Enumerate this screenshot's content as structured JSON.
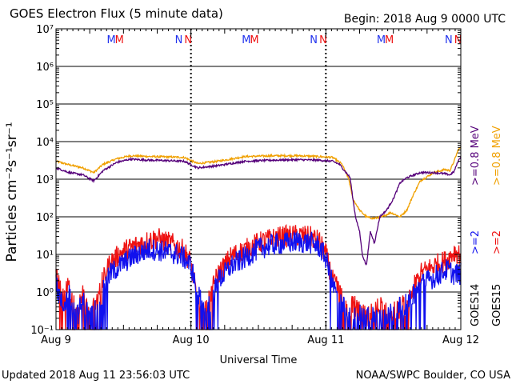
{
  "header": {
    "title": "GOES Electron Flux (5 minute data)",
    "begin": "Begin: 2018 Aug 9 0000 UTC"
  },
  "footer": {
    "updated": "Updated 2018 Aug 11 23:56:03 UTC",
    "credit": "NOAA/SWPC Boulder, CO USA"
  },
  "chart_data": {
    "type": "line",
    "title": "GOES Electron Flux (5 minute data)",
    "xlabel": "Universal Time",
    "ylabel": "Particles cm⁻²s⁻¹sr⁻¹",
    "yscale": "log",
    "ylim": [
      0.1,
      10000000
    ],
    "xlim_days": [
      0,
      3
    ],
    "grid": true,
    "reference_line": 1000,
    "x_ticks": [
      "Aug 9",
      "Aug 10",
      "Aug 11",
      "Aug 12"
    ],
    "y_ticks": [
      "10⁻¹",
      "10⁰",
      "10¹",
      "10²",
      "10³",
      "10⁴",
      "10⁵",
      "10⁶",
      "10⁷"
    ],
    "legend": {
      "g15_08": ">=0.8 MeV",
      "g14_08": ">=0.8 MeV",
      "g15_2": ">=2",
      "g14_2": ">=2",
      "goes15": "GOES15",
      "goes14": "GOES14"
    },
    "markers": [
      {
        "day": 0.41,
        "label": "M",
        "color": "#2233ee"
      },
      {
        "day": 0.47,
        "label": "M",
        "color": "#ee1111"
      },
      {
        "day": 0.91,
        "label": "N",
        "color": "#2233ee"
      },
      {
        "day": 0.98,
        "label": "N",
        "color": "#ee1111"
      },
      {
        "day": 1.41,
        "label": "M",
        "color": "#2233ee"
      },
      {
        "day": 1.47,
        "label": "M",
        "color": "#ee1111"
      },
      {
        "day": 1.91,
        "label": "N",
        "color": "#2233ee"
      },
      {
        "day": 1.98,
        "label": "N",
        "color": "#ee1111"
      },
      {
        "day": 2.41,
        "label": "M",
        "color": "#2233ee"
      },
      {
        "day": 2.47,
        "label": "M",
        "color": "#ee1111"
      },
      {
        "day": 2.91,
        "label": "N",
        "color": "#2233ee"
      },
      {
        "day": 2.98,
        "label": "N",
        "color": "#ee1111"
      }
    ],
    "series": [
      {
        "key": "g15_08",
        "color": "#f0a000",
        "x": [
          0.0,
          0.1,
          0.2,
          0.28,
          0.35,
          0.45,
          0.55,
          0.7,
          0.85,
          0.95,
          1.05,
          1.2,
          1.4,
          1.6,
          1.8,
          1.95,
          2.05,
          2.12,
          2.17,
          2.2,
          2.25,
          2.3,
          2.35,
          2.42,
          2.48,
          2.55,
          2.6,
          2.65,
          2.7,
          2.8,
          2.88,
          2.92,
          2.95,
          2.98,
          3.0
        ],
        "y": [
          3000,
          2400,
          2000,
          1500,
          2500,
          3500,
          4200,
          4000,
          3900,
          3800,
          2600,
          3000,
          4000,
          4200,
          4200,
          4000,
          3800,
          2500,
          1000,
          300,
          150,
          100,
          90,
          100,
          130,
          100,
          150,
          400,
          900,
          1500,
          1800,
          1700,
          3000,
          6000,
          7000
        ]
      },
      {
        "key": "g14_08",
        "color": "#55007a",
        "x": [
          0.0,
          0.1,
          0.2,
          0.28,
          0.35,
          0.45,
          0.55,
          0.7,
          0.85,
          0.95,
          1.05,
          1.2,
          1.4,
          1.6,
          1.8,
          1.95,
          2.05,
          2.1,
          2.15,
          2.18,
          2.2,
          2.22,
          2.25,
          2.27,
          2.3,
          2.33,
          2.36,
          2.4,
          2.45,
          2.5,
          2.55,
          2.6,
          2.7,
          2.8,
          2.88,
          2.92,
          2.95,
          2.98,
          3.0
        ],
        "y": [
          2000,
          1500,
          1300,
          900,
          1700,
          2800,
          3400,
          3200,
          3100,
          3000,
          2000,
          2300,
          3000,
          3200,
          3300,
          3200,
          3000,
          2500,
          1500,
          1100,
          300,
          100,
          40,
          10,
          5,
          40,
          20,
          100,
          150,
          300,
          800,
          1100,
          1500,
          1500,
          1400,
          1300,
          1600,
          3000,
          4000
        ]
      },
      {
        "key": "g15_2",
        "color": "#ee1111",
        "x": [
          0.0,
          0.05,
          0.1,
          0.15,
          0.2,
          0.25,
          0.3,
          0.35,
          0.4,
          0.5,
          0.6,
          0.7,
          0.75,
          0.8,
          0.85,
          0.9,
          0.95,
          1.0,
          1.05,
          1.1,
          1.15,
          1.2,
          1.25,
          1.3,
          1.4,
          1.5,
          1.6,
          1.7,
          1.8,
          1.9,
          1.95,
          2.0,
          2.05,
          2.1,
          2.15,
          2.2,
          2.3,
          2.4,
          2.5,
          2.6,
          2.7,
          2.8,
          2.9,
          2.95,
          3.0
        ],
        "y": [
          3,
          0.6,
          2,
          0.2,
          1,
          0.2,
          0.8,
          2,
          6,
          12,
          18,
          24,
          27,
          22,
          20,
          16,
          12,
          6,
          0.5,
          0.3,
          1,
          3,
          5,
          9,
          13,
          20,
          26,
          30,
          32,
          28,
          22,
          10,
          2,
          1,
          0.3,
          0.5,
          0.2,
          0.4,
          0.3,
          0.5,
          3,
          5,
          7,
          12,
          10
        ]
      },
      {
        "key": "g14_2",
        "color": "#1111ee",
        "x": [
          0.0,
          0.05,
          0.1,
          0.15,
          0.2,
          0.25,
          0.3,
          0.35,
          0.4,
          0.5,
          0.6,
          0.7,
          0.8,
          0.9,
          0.95,
          1.0,
          1.05,
          1.1,
          1.15,
          1.2,
          1.25,
          1.3,
          1.4,
          1.5,
          1.6,
          1.7,
          1.8,
          1.9,
          1.95,
          2.0,
          2.05,
          2.1,
          2.15,
          2.2,
          2.3,
          2.4,
          2.5,
          2.6,
          2.7,
          2.8,
          2.9,
          2.95,
          3.0
        ],
        "y": [
          1.5,
          0.4,
          1,
          0.2,
          0.6,
          0.2,
          0.5,
          1,
          3,
          6,
          10,
          14,
          12,
          10,
          8,
          5,
          1,
          0.3,
          0.5,
          2,
          3,
          5,
          8,
          14,
          18,
          20,
          22,
          20,
          16,
          8,
          1.5,
          0.6,
          0.3,
          0.2,
          0.3,
          0.2,
          0.3,
          0.5,
          1.5,
          2.5,
          4,
          3,
          3
        ]
      }
    ]
  }
}
